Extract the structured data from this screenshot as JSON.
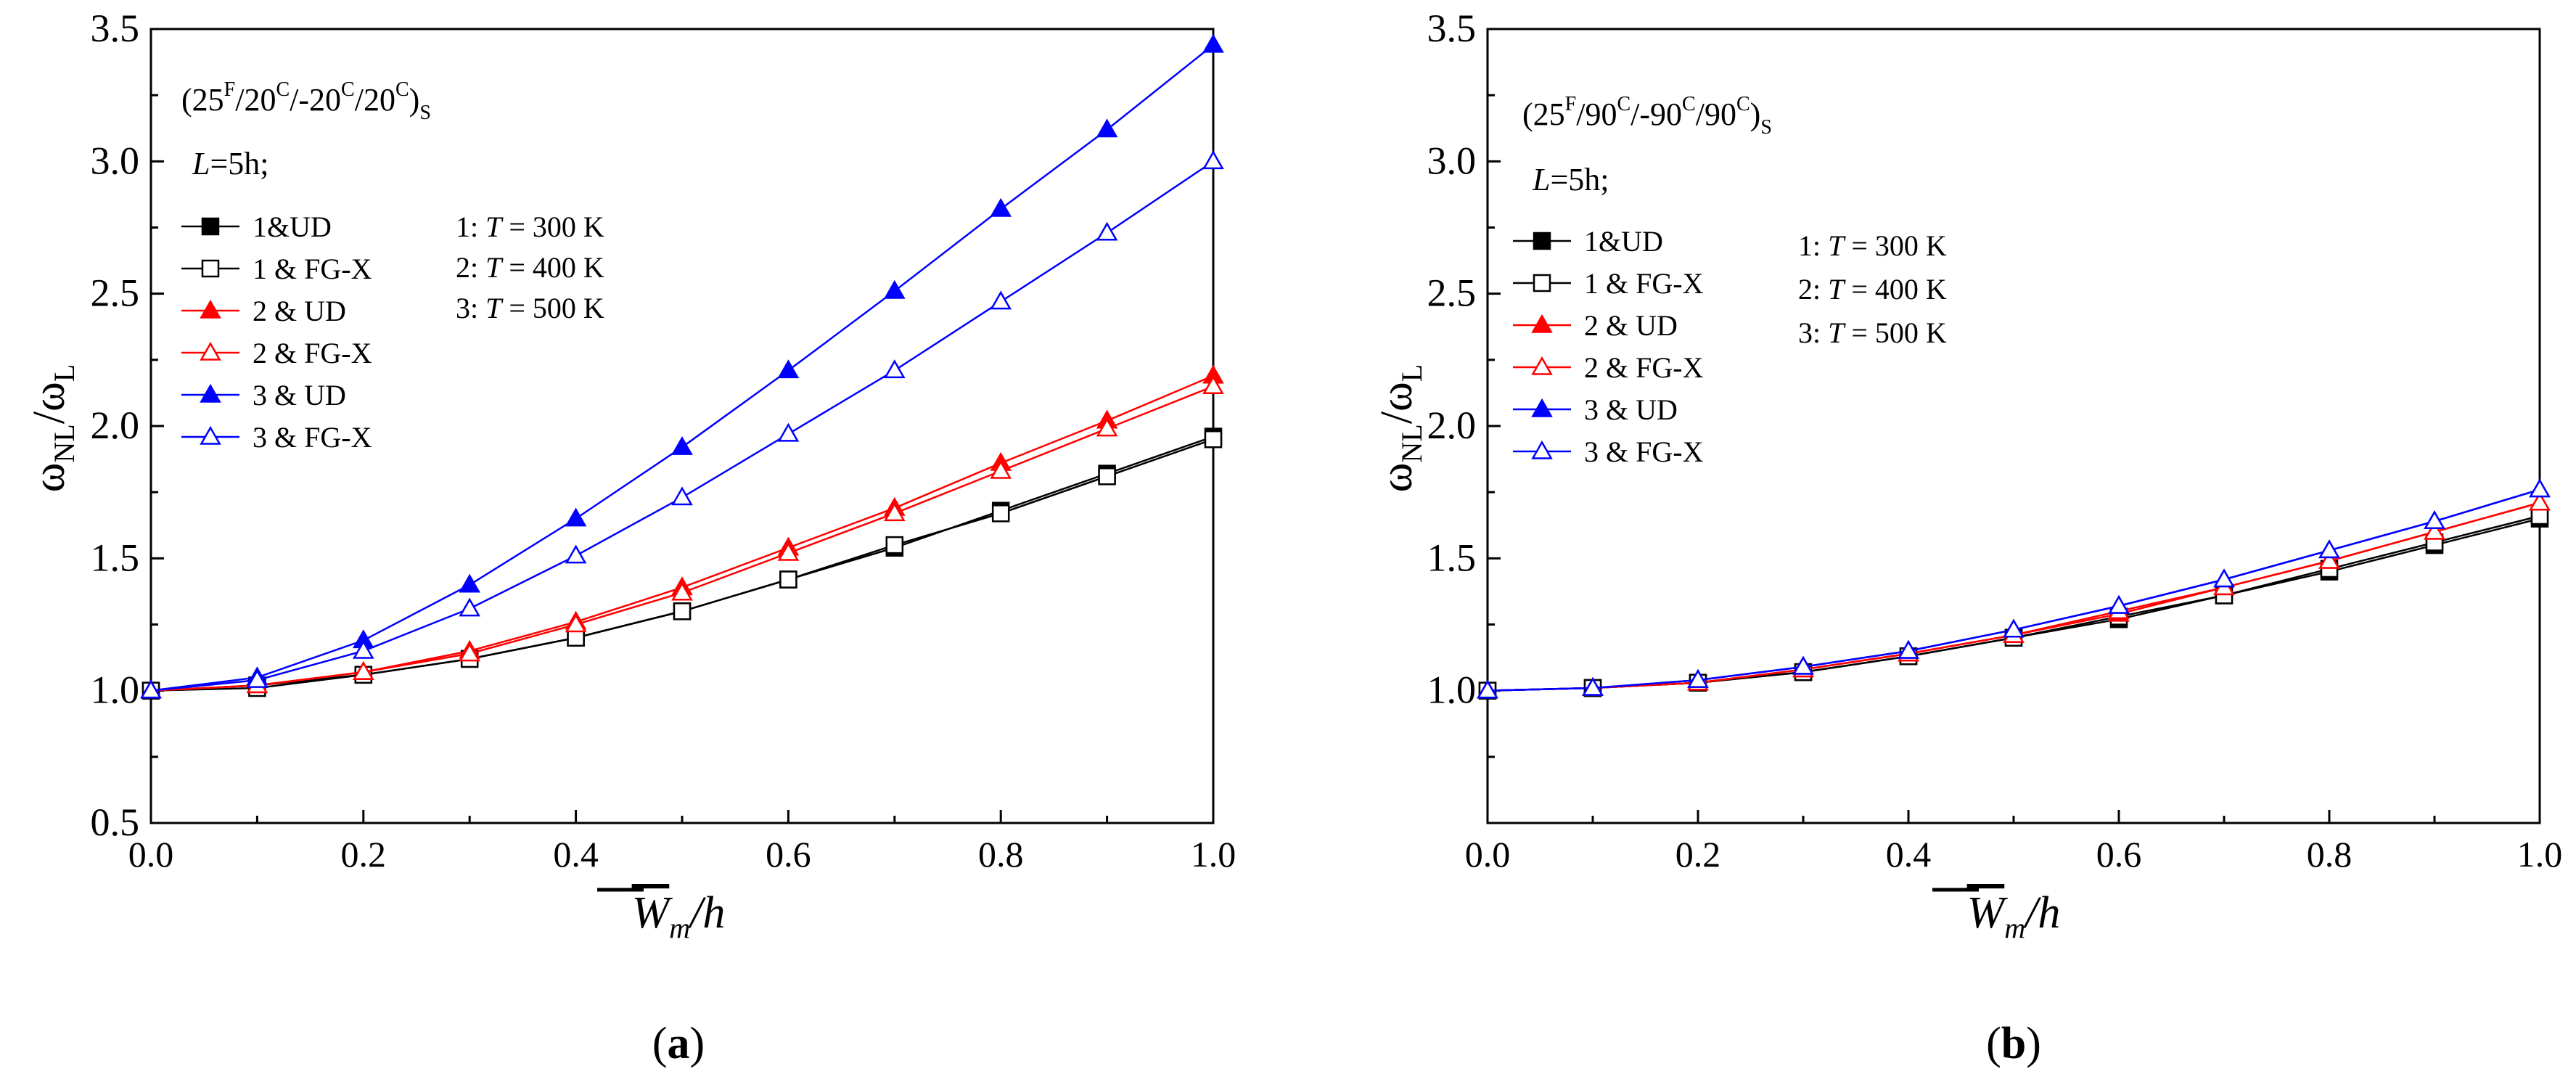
{
  "chart_data": [
    {
      "panel": "a",
      "type": "line",
      "caption": "a",
      "annotation": {
        "layup": {
          "p1": "(25",
          "s1": "F",
          "p2": "/20",
          "s2": "C",
          "p3": "/-20",
          "s3": "C",
          "p4": "/20",
          "s4": "C",
          "p5": ")",
          "sub": "S"
        },
        "length": {
          "sym": "L",
          "rest": "=5h;"
        }
      },
      "temperatures": [
        {
          "prefix": "1: ",
          "sym": "T",
          "value": " = 300 K"
        },
        {
          "prefix": "2: ",
          "sym": "T",
          "value": " = 400 K"
        },
        {
          "prefix": "3: ",
          "sym": "T",
          "value": " = 500 K"
        }
      ],
      "xlabel": {
        "base": "W",
        "sub": "m",
        "rest": "/h"
      },
      "ylabel": {
        "w1": "ω",
        "s1": "NL",
        "mid": "/ω",
        "s2": "L"
      },
      "xlim": [
        0.0,
        1.0
      ],
      "ylim": [
        0.5,
        3.5
      ],
      "xticks": [
        "0.0",
        "0.2",
        "0.4",
        "0.6",
        "0.8",
        "1.0"
      ],
      "yticks": [
        "0.5",
        "1.0",
        "1.5",
        "2.0",
        "2.5",
        "3.0",
        "3.5"
      ],
      "x": [
        0.0,
        0.1,
        0.2,
        0.3,
        0.4,
        0.5,
        0.6,
        0.7,
        0.8,
        0.9,
        1.0
      ],
      "series": [
        {
          "name": "1&UD",
          "color": "#000000",
          "marker": "square",
          "filled": true,
          "values": [
            1.0,
            1.02,
            1.06,
            1.12,
            1.2,
            1.3,
            1.42,
            1.54,
            1.68,
            1.82,
            1.96
          ]
        },
        {
          "name": "1 & FG-X",
          "color": "#000000",
          "marker": "square",
          "filled": false,
          "values": [
            1.0,
            1.01,
            1.06,
            1.12,
            1.2,
            1.3,
            1.42,
            1.55,
            1.67,
            1.81,
            1.95
          ]
        },
        {
          "name": "2 & UD",
          "color": "#ff0000",
          "marker": "triangle",
          "filled": true,
          "values": [
            1.0,
            1.02,
            1.07,
            1.15,
            1.26,
            1.39,
            1.54,
            1.69,
            1.86,
            2.02,
            2.19
          ]
        },
        {
          "name": "2 & FG-X",
          "color": "#ff0000",
          "marker": "triangle",
          "filled": false,
          "values": [
            1.0,
            1.02,
            1.07,
            1.14,
            1.25,
            1.37,
            1.52,
            1.67,
            1.83,
            1.99,
            2.15
          ]
        },
        {
          "name": "3 & UD",
          "color": "#0000ff",
          "marker": "triangle",
          "filled": true,
          "values": [
            1.0,
            1.05,
            1.19,
            1.4,
            1.65,
            1.92,
            2.21,
            2.51,
            2.82,
            3.12,
            3.44
          ]
        },
        {
          "name": "3 & FG-X",
          "color": "#0000ff",
          "marker": "triangle",
          "filled": false,
          "values": [
            1.0,
            1.04,
            1.15,
            1.31,
            1.51,
            1.73,
            1.97,
            2.21,
            2.47,
            2.73,
            3.0
          ]
        }
      ]
    },
    {
      "panel": "b",
      "type": "line",
      "caption": "b",
      "annotation": {
        "layup": {
          "p1": "(25",
          "s1": "F",
          "p2": "/90",
          "s2": "C",
          "p3": "/-90",
          "s3": "C",
          "p4": "/90",
          "s4": "C",
          "p5": ")",
          "sub": "S"
        },
        "length": {
          "sym": "L",
          "rest": "=5h;"
        }
      },
      "temperatures": [
        {
          "prefix": "1: ",
          "sym": "T",
          "value": " = 300 K"
        },
        {
          "prefix": "2: ",
          "sym": "T",
          "value": " = 400 K"
        },
        {
          "prefix": "3: ",
          "sym": "T",
          "value": " = 500 K"
        }
      ],
      "xlabel": {
        "base": "W",
        "sub": "m",
        "rest": "/h"
      },
      "ylabel": {
        "w1": "ω",
        "s1": "NL",
        "mid": "/ω",
        "s2": "L"
      },
      "xlim": [
        0.0,
        1.0
      ],
      "ylim": [
        0.5,
        3.5
      ],
      "xticks": [
        "0.0",
        "0.2",
        "0.4",
        "0.6",
        "0.8",
        "1.0"
      ],
      "yticks": [
        "1.0",
        "1.5",
        "2.0",
        "2.5",
        "3.0",
        "3.5"
      ],
      "x": [
        0.0,
        0.1,
        0.2,
        0.3,
        0.4,
        0.5,
        0.6,
        0.7,
        0.8,
        0.9,
        1.0
      ],
      "series": [
        {
          "name": "1&UD",
          "color": "#000000",
          "marker": "square",
          "filled": true,
          "values": [
            1.0,
            1.01,
            1.03,
            1.07,
            1.13,
            1.2,
            1.27,
            1.36,
            1.45,
            1.55,
            1.65
          ]
        },
        {
          "name": "1 & FG-X",
          "color": "#000000",
          "marker": "square",
          "filled": false,
          "values": [
            1.0,
            1.01,
            1.03,
            1.07,
            1.13,
            1.2,
            1.28,
            1.36,
            1.46,
            1.56,
            1.66
          ]
        },
        {
          "name": "2 & UD",
          "color": "#ff0000",
          "marker": "triangle",
          "filled": true,
          "values": [
            1.0,
            1.01,
            1.03,
            1.08,
            1.14,
            1.21,
            1.29,
            1.39,
            1.49,
            1.6,
            1.71
          ]
        },
        {
          "name": "2 & FG-X",
          "color": "#ff0000",
          "marker": "triangle",
          "filled": false,
          "values": [
            1.0,
            1.01,
            1.03,
            1.08,
            1.14,
            1.21,
            1.3,
            1.39,
            1.49,
            1.6,
            1.71
          ]
        },
        {
          "name": "3 & UD",
          "color": "#0000ff",
          "marker": "triangle",
          "filled": true,
          "values": [
            1.0,
            1.01,
            1.04,
            1.09,
            1.15,
            1.23,
            1.32,
            1.42,
            1.53,
            1.64,
            1.76
          ]
        },
        {
          "name": "3 & FG-X",
          "color": "#0000ff",
          "marker": "triangle",
          "filled": false,
          "values": [
            1.0,
            1.01,
            1.04,
            1.09,
            1.15,
            1.23,
            1.32,
            1.42,
            1.53,
            1.64,
            1.76
          ]
        }
      ]
    }
  ]
}
